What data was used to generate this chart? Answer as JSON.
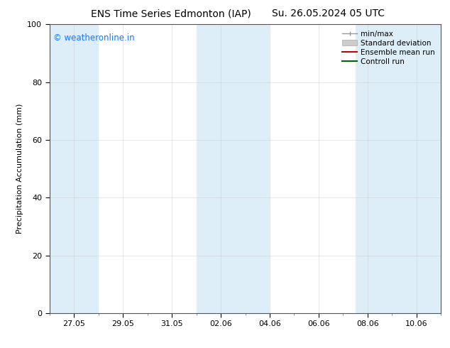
{
  "title_left": "ENS Time Series Edmonton (IAP)",
  "title_right": "Su. 26.05.2024 05 UTC",
  "ylabel": "Precipitation Accumulation (mm)",
  "ylim": [
    0,
    100
  ],
  "yticks": [
    0,
    20,
    40,
    60,
    80,
    100
  ],
  "xtick_labels": [
    "27.05",
    "29.05",
    "31.05",
    "02.06",
    "04.06",
    "06.06",
    "08.06",
    "10.06"
  ],
  "watermark": "© weatheronline.in",
  "watermark_color": "#1a75ff",
  "background_color": "#ffffff",
  "plot_bg_color": "#ffffff",
  "band_color": "#ddeef8",
  "title_fontsize": 10,
  "label_fontsize": 8,
  "tick_fontsize": 8,
  "legend_fontsize": 7.5
}
